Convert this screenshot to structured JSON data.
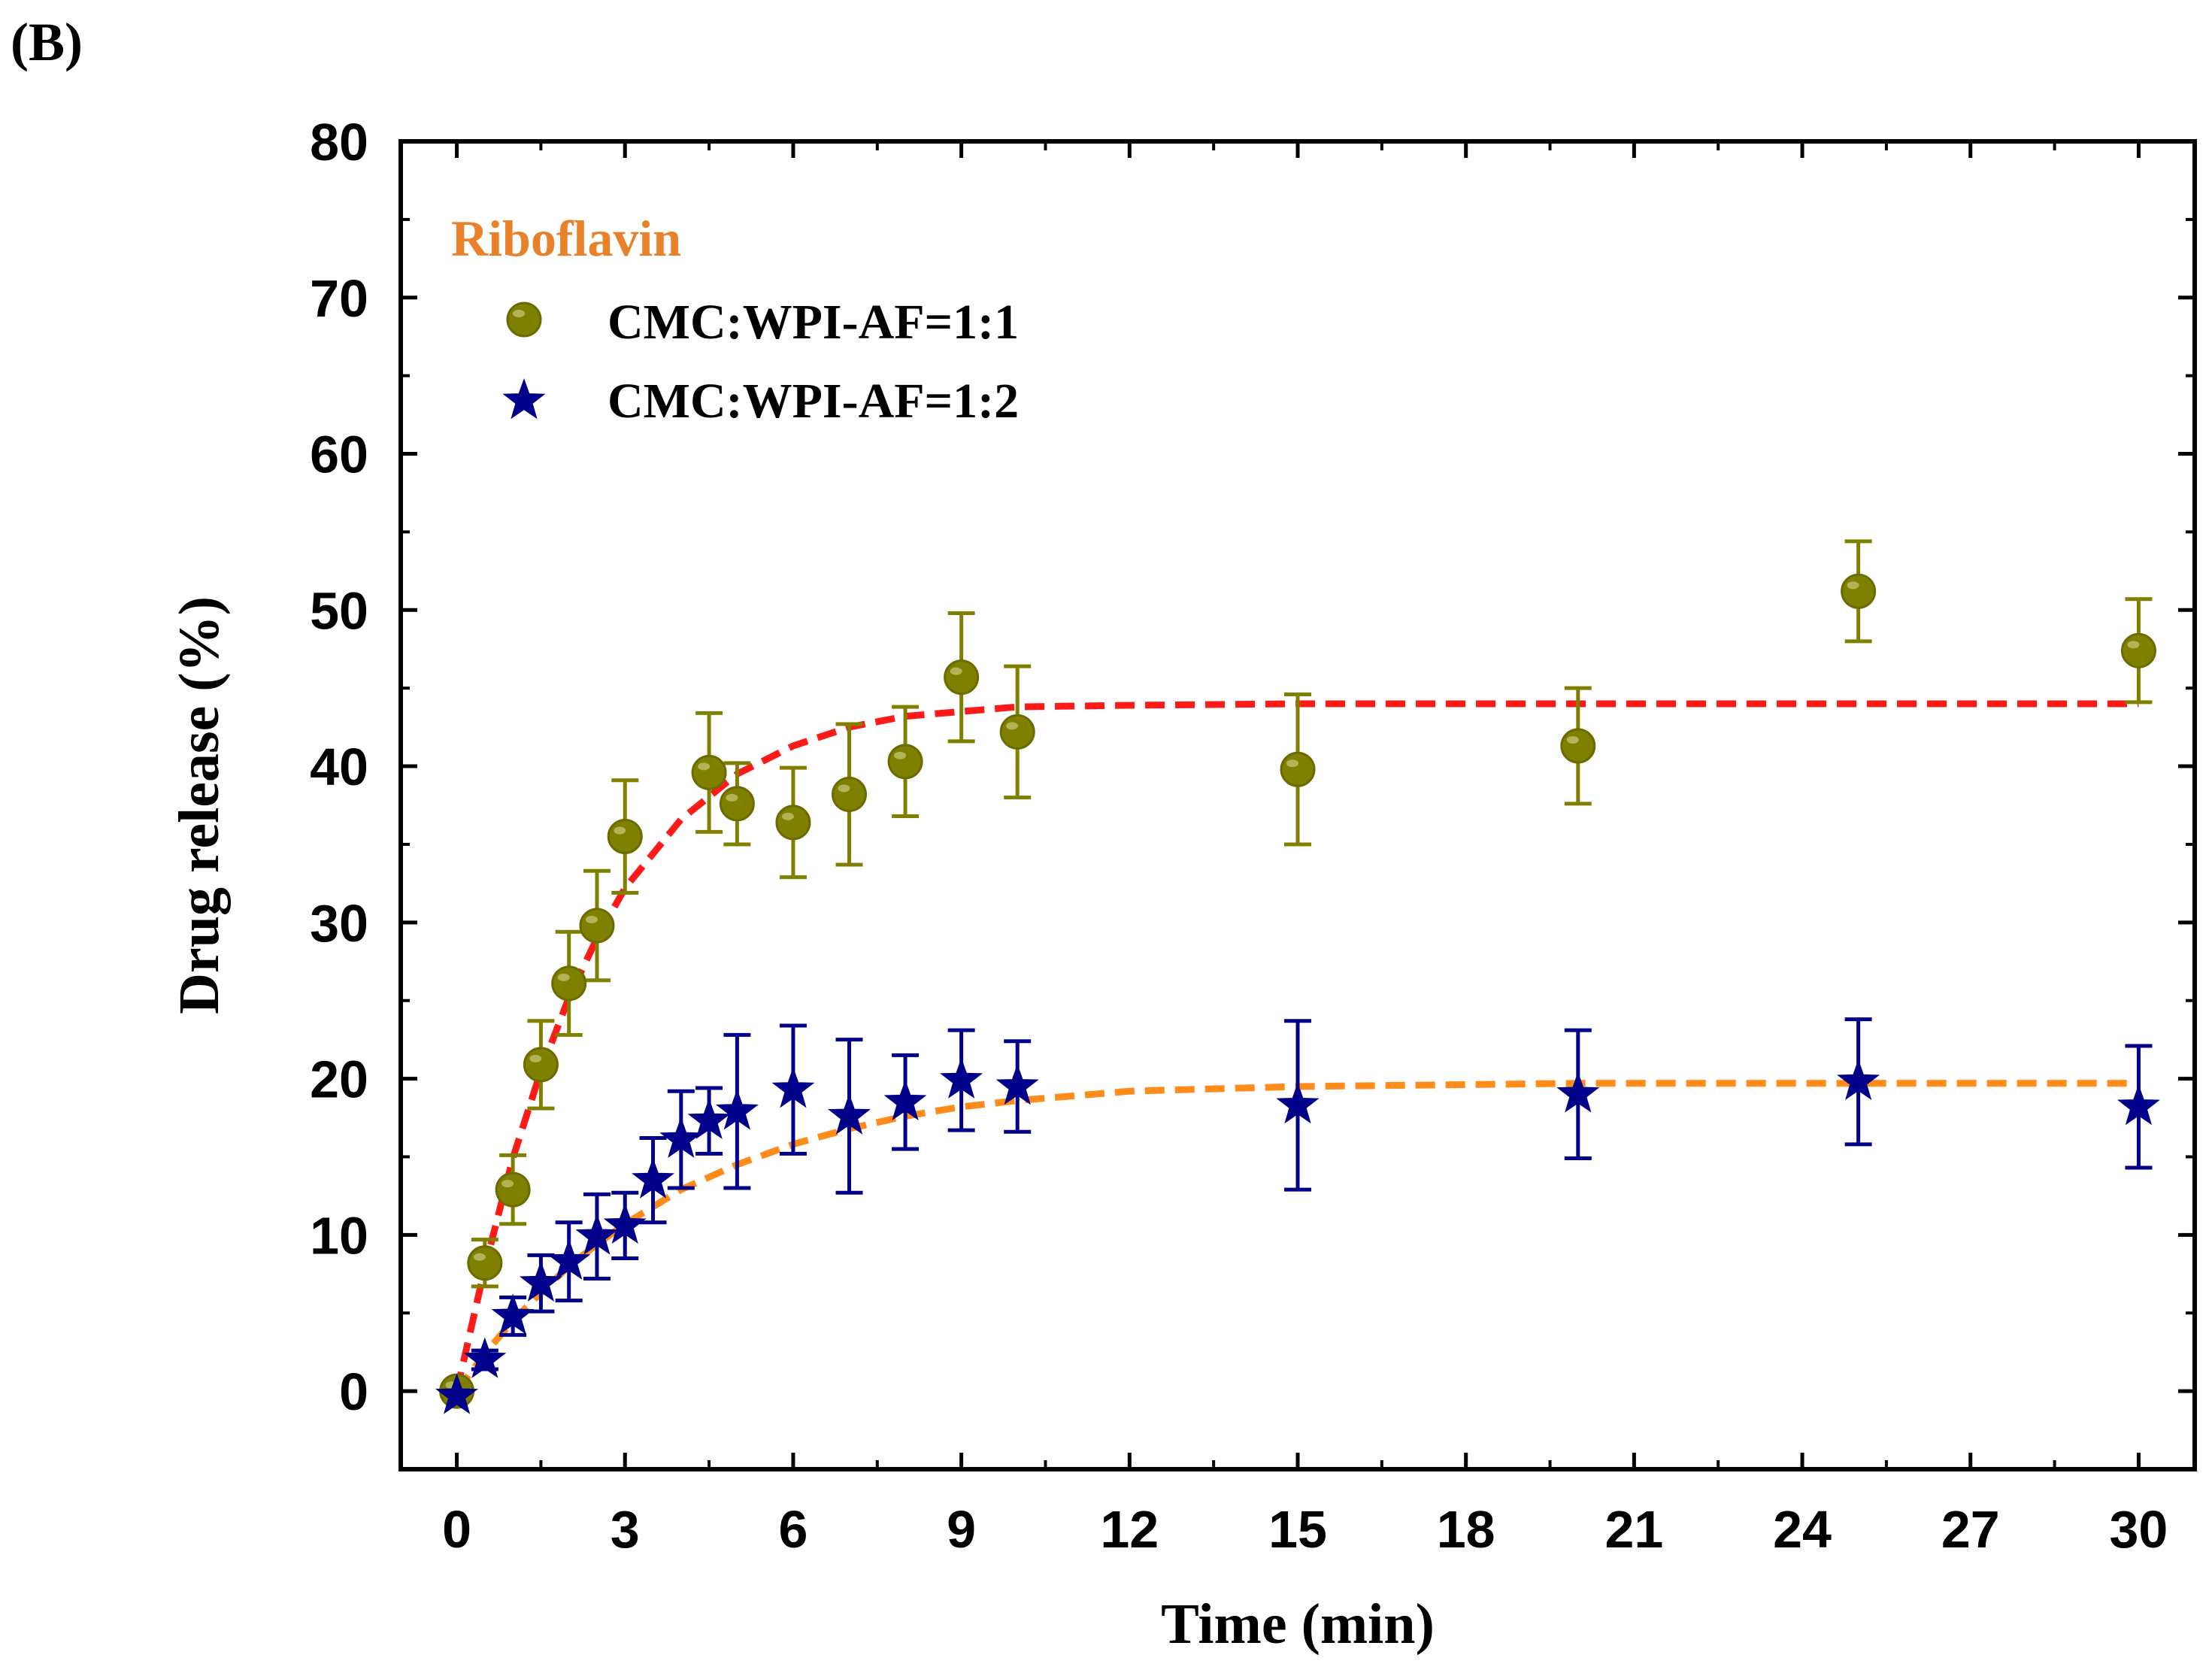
{
  "panel_label": "(B)",
  "chart_data": {
    "type": "scatter",
    "title": "",
    "xlabel": "Time (min)",
    "ylabel": "Drug release (%)",
    "xlim": [
      -1,
      31
    ],
    "ylim": [
      -5,
      80
    ],
    "xticks": [
      0,
      3,
      6,
      9,
      12,
      15,
      18,
      21,
      24,
      27,
      30
    ],
    "yticks": [
      0,
      10,
      20,
      30,
      40,
      50,
      60,
      70,
      80
    ],
    "legend_title": "Riboflavin",
    "legend_position": "top-left",
    "colors": {
      "series1": "#808000",
      "series1_edge": "#6b6b00",
      "series2": "#00008b",
      "fit1": "#ff1a1a",
      "fit2": "#ff8c1a",
      "legend_title": "#e8812a",
      "axis": "#000000"
    },
    "series": [
      {
        "name": "CMC:WPI-AF=1:1",
        "marker": "circle",
        "x": [
          0,
          0.5,
          1,
          1.5,
          2,
          2.5,
          3,
          4.5,
          5,
          6,
          7,
          8,
          9,
          10,
          15,
          20,
          25,
          30
        ],
        "y": [
          0,
          8.2,
          12.9,
          20.9,
          26.1,
          29.8,
          35.5,
          39.6,
          37.6,
          36.4,
          38.2,
          40.3,
          45.7,
          42.2,
          39.8,
          41.3,
          51.2,
          47.4
        ],
        "err": [
          0,
          1.5,
          2.2,
          2.8,
          3.3,
          3.5,
          3.6,
          3.8,
          2.6,
          3.5,
          4.5,
          3.5,
          4.1,
          4.2,
          4.8,
          3.7,
          3.2,
          3.3
        ]
      },
      {
        "name": "CMC:WPI-AF=1:2",
        "marker": "star",
        "x": [
          0,
          0.5,
          1,
          1.5,
          2,
          2.5,
          3,
          3.5,
          4,
          4.5,
          5,
          6,
          7,
          8,
          9,
          10,
          15,
          20,
          25,
          30
        ],
        "y": [
          -0.3,
          2.0,
          4.8,
          6.9,
          8.3,
          9.9,
          10.6,
          13.5,
          16.1,
          17.3,
          17.9,
          19.3,
          17.6,
          18.5,
          19.9,
          19.5,
          18.3,
          19.0,
          19.8,
          18.2
        ],
        "err": [
          0.3,
          0.6,
          1.2,
          1.8,
          2.5,
          2.7,
          2.1,
          2.7,
          3.1,
          2.1,
          4.9,
          4.1,
          4.9,
          3.0,
          3.2,
          2.9,
          5.4,
          4.1,
          4.0,
          3.9
        ]
      }
    ],
    "fits": [
      {
        "name": "fit CMC:WPI-AF=1:1",
        "style": "dashed",
        "x": [
          0,
          0.5,
          1,
          1.5,
          2,
          2.5,
          3,
          4,
          5,
          6,
          7,
          8,
          9,
          10,
          12,
          15,
          20,
          25,
          30
        ],
        "y": [
          0,
          7.9,
          14.9,
          20.5,
          25.2,
          29.0,
          32.2,
          36.6,
          39.5,
          41.3,
          42.5,
          43.2,
          43.5,
          43.8,
          43.9,
          44.0,
          44.0,
          44.0,
          44.0
        ]
      },
      {
        "name": "fit CMC:WPI-AF=1:2",
        "style": "dashed",
        "x": [
          0,
          0.5,
          1,
          1.5,
          2,
          2.5,
          3,
          4,
          5,
          6,
          7,
          8,
          9,
          10,
          12,
          15,
          20,
          25,
          30
        ],
        "y": [
          0,
          2.4,
          4.5,
          6.3,
          8.0,
          9.4,
          10.7,
          12.9,
          14.5,
          15.8,
          16.8,
          17.6,
          18.2,
          18.6,
          19.2,
          19.5,
          19.7,
          19.7,
          19.7
        ]
      }
    ]
  }
}
